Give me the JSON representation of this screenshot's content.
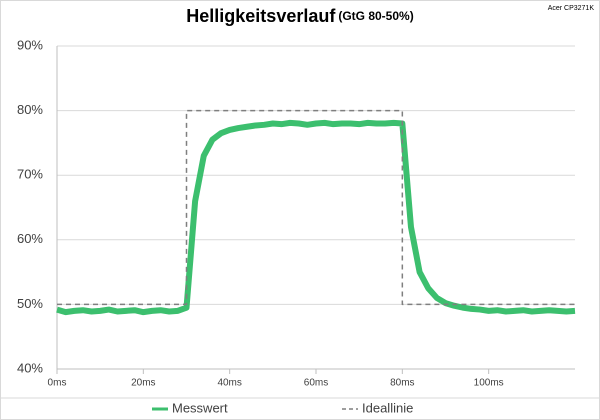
{
  "chart_data": {
    "type": "line",
    "title": "Helligkeitsverlauf",
    "subtitle": "(GtG 80-50%)",
    "annotation": "Acer CP3271K",
    "x": [
      0,
      2,
      4,
      6,
      8,
      10,
      12,
      14,
      16,
      18,
      20,
      22,
      24,
      26,
      28,
      30,
      32,
      34,
      36,
      38,
      40,
      42,
      44,
      46,
      48,
      50,
      52,
      54,
      56,
      58,
      60,
      62,
      64,
      66,
      68,
      70,
      72,
      74,
      76,
      78,
      80,
      82,
      84,
      86,
      88,
      90,
      92,
      94,
      96,
      98,
      100,
      102,
      104,
      106,
      108,
      110,
      112,
      114,
      116,
      118,
      120
    ],
    "series": [
      {
        "name": "Messwert",
        "color": "#3cbf6e",
        "style": "solid",
        "values": [
          49.2,
          48.8,
          49.0,
          49.1,
          48.9,
          49.0,
          49.2,
          48.9,
          49.0,
          49.1,
          48.8,
          49.0,
          49.1,
          48.9,
          49.0,
          49.5,
          66,
          73,
          75.5,
          76.5,
          77,
          77.3,
          77.5,
          77.7,
          77.8,
          78.0,
          77.9,
          78.1,
          78.0,
          77.8,
          78.0,
          78.1,
          77.9,
          78.0,
          78.0,
          77.9,
          78.1,
          78.0,
          78.0,
          78.1,
          78,
          62,
          55,
          52.5,
          51,
          50.2,
          49.8,
          49.5,
          49.3,
          49.2,
          49.0,
          49.1,
          48.9,
          49.0,
          49.1,
          48.9,
          49.0,
          49.1,
          49.0,
          48.9,
          49.0
        ]
      },
      {
        "name": "Ideallinie",
        "color": "#7f7f7f",
        "style": "dashed",
        "x": [
          0,
          30,
          30,
          80,
          80,
          120
        ],
        "values": [
          50,
          50,
          80,
          80,
          50,
          50
        ]
      }
    ],
    "xlim": [
      0,
      120
    ],
    "xticks": [
      {
        "value": 0,
        "label": "0ms"
      },
      {
        "value": 20,
        "label": "20ms"
      },
      {
        "value": 40,
        "label": "40ms"
      },
      {
        "value": 60,
        "label": "60ms"
      },
      {
        "value": 80,
        "label": "80ms"
      },
      {
        "value": 100,
        "label": "100ms"
      }
    ],
    "ylim": [
      40,
      90
    ],
    "yticks": [
      {
        "value": 40,
        "label": "40%"
      },
      {
        "value": 50,
        "label": "50%"
      },
      {
        "value": 60,
        "label": "60%"
      },
      {
        "value": 70,
        "label": "70%"
      },
      {
        "value": 80,
        "label": "80%"
      },
      {
        "value": 90,
        "label": "90%"
      }
    ],
    "grid": true,
    "legend": "bottom"
  }
}
